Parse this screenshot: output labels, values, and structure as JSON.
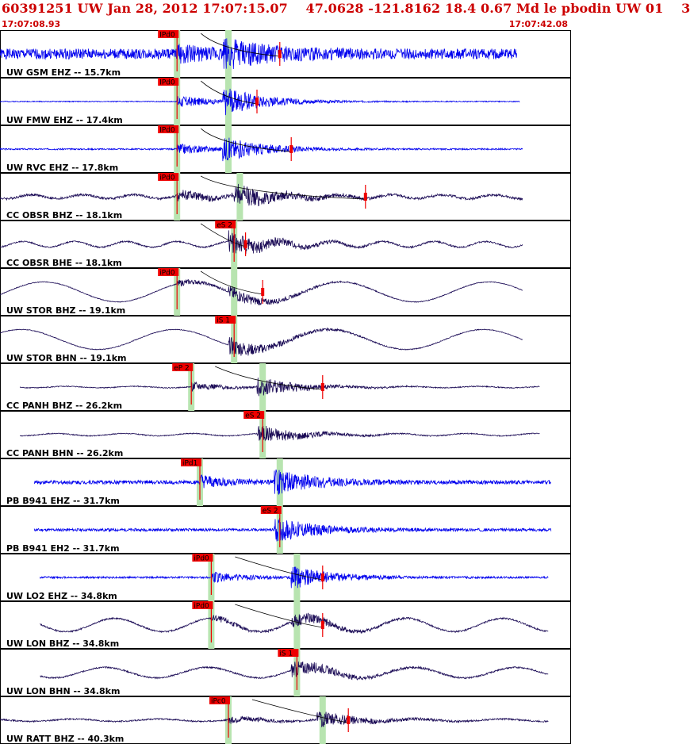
{
  "header": {
    "title": "60391251 UW Jan 28, 2012 17:07:15.07    47.0628 -121.8162 18.4 0.67 Md le pbodin UW 01    3",
    "start_time": "17:07:08.93",
    "end_time": "17:07:42.08"
  },
  "colors": {
    "header_text": "#cc0000",
    "trace_blue": "#0000ee",
    "trace_dark": "#1a0a55",
    "pick_red": "#ee0000",
    "pick_window": "#b8e4b0",
    "border": "#000000"
  },
  "chart_data": {
    "type": "seismogram",
    "time_range": [
      "17:07:08.93",
      "17:07:42.08"
    ],
    "traces": [
      {
        "station_label": "UW GSM EHZ -- 15.7km",
        "pick_label": "IPd0",
        "s_label": "",
        "color": "blue",
        "p_frac": 0.31,
        "s_frac": 0.4,
        "end_frac": 0.49,
        "amp": 0.45,
        "noise": 0.22,
        "wave": 0.0,
        "wave_period": 0.3,
        "start_frac": 0.0,
        "stop_frac": 0.905,
        "seed": 1
      },
      {
        "station_label": "UW FMW EHZ -- 17.4km",
        "pick_label": "IPd0",
        "s_label": "",
        "color": "blue",
        "p_frac": 0.31,
        "s_frac": 0.4,
        "end_frac": 0.45,
        "amp": 0.5,
        "noise": 0.02,
        "wave": 0.0,
        "wave_period": 0.3,
        "start_frac": 0.0,
        "stop_frac": 0.91,
        "seed": 2
      },
      {
        "station_label": "UW RVC EHZ -- 17.8km",
        "pick_label": "IPd0",
        "s_label": "",
        "color": "blue",
        "p_frac": 0.31,
        "s_frac": 0.4,
        "end_frac": 0.51,
        "amp": 0.42,
        "noise": 0.03,
        "wave": 0.0,
        "wave_period": 0.3,
        "start_frac": 0.0,
        "stop_frac": 0.915,
        "seed": 3
      },
      {
        "station_label": "CC OBSR BHZ -- 18.1km",
        "pick_label": "iPd0",
        "s_label": "",
        "color": "dark",
        "p_frac": 0.31,
        "s_frac": 0.42,
        "end_frac": 0.64,
        "amp": 0.4,
        "noise": 0.05,
        "wave": 0.08,
        "wave_period": 0.09,
        "start_frac": 0.0,
        "stop_frac": 0.915,
        "seed": 4
      },
      {
        "station_label": "CC OBSR BHE -- 18.1km",
        "pick_label": "",
        "s_label": "eS 2",
        "color": "dark",
        "p_frac": 0.31,
        "s_frac": 0.41,
        "end_frac": 0.43,
        "amp": 0.45,
        "noise": 0.03,
        "wave": 0.12,
        "wave_period": 0.09,
        "start_frac": 0.0,
        "stop_frac": 0.915,
        "seed": 5
      },
      {
        "station_label": "UW STOR BHZ -- 19.1km",
        "pick_label": "iPd0",
        "s_label": "",
        "color": "dark",
        "p_frac": 0.31,
        "s_frac": 0.41,
        "end_frac": 0.46,
        "amp": 0.25,
        "noise": 0.015,
        "wave": 0.42,
        "wave_period": 0.26,
        "start_frac": 0.0,
        "stop_frac": 0.915,
        "seed": 6
      },
      {
        "station_label": "UW STOR BHN -- 19.1km",
        "pick_label": "",
        "s_label": "iS 1",
        "color": "dark",
        "p_frac": 0.31,
        "s_frac": 0.41,
        "end_frac": 0.41,
        "amp": 0.35,
        "noise": 0.015,
        "wave": 0.42,
        "wave_period": 0.27,
        "start_frac": 0.0,
        "stop_frac": 0.915,
        "seed": 7
      },
      {
        "station_label": "CC PANH BHZ -- 26.2km",
        "pick_label": "eP 2",
        "s_label": "",
        "color": "dark",
        "p_frac": 0.335,
        "s_frac": 0.46,
        "end_frac": 0.565,
        "amp": 0.35,
        "noise": 0.02,
        "wave": 0.03,
        "wave_period": 0.12,
        "start_frac": 0.035,
        "stop_frac": 0.945,
        "seed": 8
      },
      {
        "station_label": "CC PANH BHN -- 26.2km",
        "pick_label": "",
        "s_label": "eS 2",
        "color": "dark",
        "p_frac": 0.335,
        "s_frac": 0.46,
        "end_frac": 0.46,
        "amp": 0.35,
        "noise": 0.02,
        "wave": 0.05,
        "wave_period": 0.12,
        "start_frac": 0.035,
        "stop_frac": 0.945,
        "seed": 9
      },
      {
        "station_label": "PB B941 EHZ -- 31.7km",
        "pick_label": "iPd1",
        "s_label": "",
        "color": "blue",
        "p_frac": 0.35,
        "s_frac": 0.49,
        "end_frac": 0.345,
        "amp": 0.45,
        "noise": 0.08,
        "wave": 0.0,
        "wave_period": 0.3,
        "start_frac": 0.06,
        "stop_frac": 0.965,
        "seed": 10
      },
      {
        "station_label": "PB B941 EH2 -- 31.7km",
        "pick_label": "",
        "s_label": "eS 2",
        "color": "blue",
        "p_frac": 0.35,
        "s_frac": 0.49,
        "end_frac": 0.49,
        "amp": 0.45,
        "noise": 0.06,
        "wave": 0.0,
        "wave_period": 0.3,
        "start_frac": 0.06,
        "stop_frac": 0.965,
        "seed": 11
      },
      {
        "station_label": "UW LO2 EHZ -- 34.8km",
        "pick_label": "iPd0",
        "s_label": "",
        "color": "blue",
        "p_frac": 0.37,
        "s_frac": 0.52,
        "end_frac": 0.565,
        "amp": 0.4,
        "noise": 0.04,
        "wave": 0.0,
        "wave_period": 0.3,
        "start_frac": 0.07,
        "stop_frac": 0.96,
        "seed": 12
      },
      {
        "station_label": "UW LON BHZ -- 34.8km",
        "pick_label": "iPd0",
        "s_label": "",
        "color": "dark",
        "p_frac": 0.37,
        "s_frac": 0.52,
        "end_frac": 0.565,
        "amp": 0.25,
        "noise": 0.03,
        "wave": 0.28,
        "wave_period": 0.17,
        "start_frac": 0.07,
        "stop_frac": 0.96,
        "seed": 13
      },
      {
        "station_label": "UW LON BHN -- 34.8km",
        "pick_label": "",
        "s_label": "iS 1",
        "color": "dark",
        "p_frac": 0.37,
        "s_frac": 0.52,
        "end_frac": 0.52,
        "amp": 0.3,
        "noise": 0.03,
        "wave": 0.22,
        "wave_period": 0.18,
        "start_frac": 0.07,
        "stop_frac": 0.96,
        "seed": 14
      },
      {
        "station_label": "UW RATT BHZ -- 40.3km",
        "pick_label": "iPc0",
        "s_label": "",
        "color": "dark",
        "p_frac": 0.4,
        "s_frac": 0.565,
        "end_frac": 0.61,
        "amp": 0.3,
        "noise": 0.03,
        "wave": 0.05,
        "wave_period": 0.15,
        "start_frac": 0.0,
        "stop_frac": 0.96,
        "seed": 15
      }
    ]
  }
}
